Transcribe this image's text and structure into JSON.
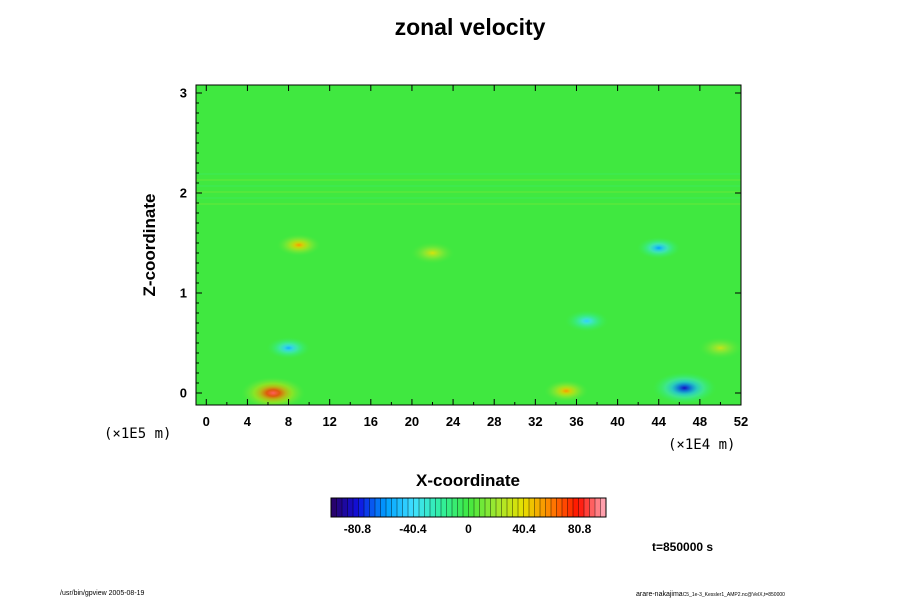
{
  "chart_data": {
    "type": "heatmap",
    "title": "zonal velocity",
    "xlabel": "X-coordinate",
    "ylabel": "Z-coordinate",
    "x_scale_label": "(×1E4 m)",
    "y_scale_label": "(×1E5 m)",
    "xlim": [
      -1,
      52
    ],
    "ylim": [
      -0.12,
      3.08
    ],
    "x_ticks": [
      "0",
      "4",
      "8",
      "12",
      "16",
      "20",
      "24",
      "28",
      "32",
      "36",
      "40",
      "44",
      "48",
      "52"
    ],
    "y_ticks": [
      "0",
      "1",
      "2",
      "3"
    ],
    "colorbar": {
      "min": -100,
      "max": 100,
      "ticks": [
        "-80.8",
        "-40.4",
        "0",
        "40.4",
        "80.8"
      ],
      "tick_values": [
        -80.8,
        -40.4,
        0,
        40.4,
        80.8
      ],
      "colors": [
        "#2a0060",
        "#1010e0",
        "#00a0ff",
        "#40e0ff",
        "#30f0a0",
        "#40e840",
        "#a0e830",
        "#e8e000",
        "#ff8000",
        "#ff1000",
        "#ffb0c0"
      ]
    },
    "features": [
      {
        "x": 6.5,
        "z": 0.0,
        "value": 90
      },
      {
        "x": 46.5,
        "z": 0.05,
        "value": -85
      },
      {
        "x": 35.0,
        "z": 0.02,
        "value": 55
      },
      {
        "x": 9.0,
        "z": 1.48,
        "value": 55
      },
      {
        "x": 44.0,
        "z": 1.45,
        "value": -60
      },
      {
        "x": 8.0,
        "z": 0.45,
        "value": -55
      },
      {
        "x": 37.0,
        "z": 0.72,
        "value": -45
      },
      {
        "x": 22.0,
        "z": 1.4,
        "value": 35
      },
      {
        "x": 50.0,
        "z": 0.45,
        "value": 30
      }
    ],
    "background_value": 0
  },
  "annotations": {
    "time": "t=850000 s",
    "footer_left": "/usr/bin/gpview 2005-08-19",
    "footer_right_main": "arare-nakajima",
    "footer_right_small": "C5_1e-3_Kessler1_AMP2.nc@VelX,t=850000"
  }
}
